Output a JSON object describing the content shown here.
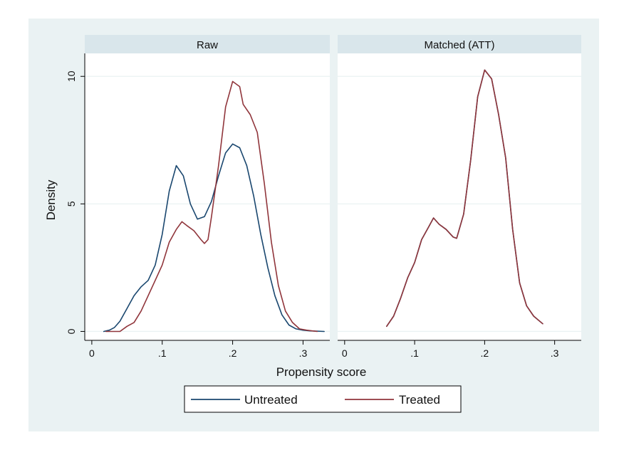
{
  "chart_data": {
    "type": "line",
    "ylabel": "Density",
    "xlabel": "Propensity score",
    "legend_position": "bottom",
    "grid": true,
    "y_ticks": [
      {
        "value": 0,
        "label": "0"
      },
      {
        "value": 5,
        "label": "5"
      },
      {
        "value": 10,
        "label": "10"
      }
    ],
    "x_ticks": [
      {
        "value": 0,
        "label": "0"
      },
      {
        "value": 0.1,
        "label": ".1"
      },
      {
        "value": 0.2,
        "label": ".2"
      },
      {
        "value": 0.3,
        "label": ".3"
      }
    ],
    "ylim": [
      -0.35,
      10.9
    ],
    "xlim": [
      -0.01,
      0.338
    ],
    "legend": [
      {
        "key": "untreated",
        "label": "Untreated",
        "color": "#1a476f"
      },
      {
        "key": "treated",
        "label": "Treated",
        "color": "#90353b"
      }
    ],
    "panels": [
      {
        "title": "Raw",
        "series": [
          {
            "key": "untreated",
            "name": "Untreated",
            "color": "#1a476f",
            "points": [
              [
                0.017,
                0.0
              ],
              [
                0.025,
                0.05
              ],
              [
                0.032,
                0.15
              ],
              [
                0.04,
                0.4
              ],
              [
                0.05,
                0.9
              ],
              [
                0.06,
                1.4
              ],
              [
                0.07,
                1.75
              ],
              [
                0.08,
                2.0
              ],
              [
                0.09,
                2.6
              ],
              [
                0.1,
                3.8
              ],
              [
                0.11,
                5.5
              ],
              [
                0.12,
                6.5
              ],
              [
                0.13,
                6.1
              ],
              [
                0.14,
                5.0
              ],
              [
                0.15,
                4.4
              ],
              [
                0.16,
                4.5
              ],
              [
                0.17,
                5.1
              ],
              [
                0.18,
                6.1
              ],
              [
                0.19,
                7.0
              ],
              [
                0.2,
                7.35
              ],
              [
                0.21,
                7.2
              ],
              [
                0.22,
                6.5
              ],
              [
                0.23,
                5.3
              ],
              [
                0.24,
                3.8
              ],
              [
                0.25,
                2.5
              ],
              [
                0.26,
                1.4
              ],
              [
                0.27,
                0.65
              ],
              [
                0.28,
                0.25
              ],
              [
                0.29,
                0.1
              ],
              [
                0.3,
                0.05
              ],
              [
                0.31,
                0.02
              ],
              [
                0.33,
                0.0
              ]
            ]
          },
          {
            "key": "treated",
            "name": "Treated",
            "color": "#90353b",
            "points": [
              [
                0.02,
                0.0
              ],
              [
                0.03,
                0.0
              ],
              [
                0.04,
                0.0
              ],
              [
                0.05,
                0.2
              ],
              [
                0.06,
                0.35
              ],
              [
                0.07,
                0.8
              ],
              [
                0.08,
                1.4
              ],
              [
                0.09,
                2.0
              ],
              [
                0.1,
                2.6
              ],
              [
                0.11,
                3.5
              ],
              [
                0.12,
                4.0
              ],
              [
                0.128,
                4.3
              ],
              [
                0.135,
                4.15
              ],
              [
                0.145,
                3.95
              ],
              [
                0.155,
                3.6
              ],
              [
                0.16,
                3.45
              ],
              [
                0.165,
                3.6
              ],
              [
                0.17,
                4.5
              ],
              [
                0.18,
                6.5
              ],
              [
                0.19,
                8.8
              ],
              [
                0.2,
                9.8
              ],
              [
                0.21,
                9.6
              ],
              [
                0.215,
                8.9
              ],
              [
                0.225,
                8.5
              ],
              [
                0.235,
                7.8
              ],
              [
                0.245,
                5.8
              ],
              [
                0.255,
                3.5
              ],
              [
                0.265,
                1.8
              ],
              [
                0.275,
                0.8
              ],
              [
                0.285,
                0.35
              ],
              [
                0.295,
                0.1
              ],
              [
                0.305,
                0.05
              ],
              [
                0.32,
                0.0
              ]
            ]
          }
        ]
      },
      {
        "title": "Matched (ATT)",
        "series": [
          {
            "key": "untreated",
            "name": "Untreated",
            "color": "#1a476f",
            "points": [
              [
                0.06,
                0.2
              ],
              [
                0.07,
                0.6
              ],
              [
                0.08,
                1.3
              ],
              [
                0.09,
                2.1
              ],
              [
                0.1,
                2.7
              ],
              [
                0.11,
                3.6
              ],
              [
                0.12,
                4.1
              ],
              [
                0.127,
                4.45
              ],
              [
                0.135,
                4.2
              ],
              [
                0.145,
                4.0
              ],
              [
                0.155,
                3.7
              ],
              [
                0.16,
                3.65
              ],
              [
                0.17,
                4.6
              ],
              [
                0.18,
                6.7
              ],
              [
                0.19,
                9.2
              ],
              [
                0.2,
                10.25
              ],
              [
                0.21,
                9.9
              ],
              [
                0.22,
                8.5
              ],
              [
                0.23,
                6.8
              ],
              [
                0.24,
                4.0
              ],
              [
                0.25,
                1.9
              ],
              [
                0.26,
                1.0
              ],
              [
                0.27,
                0.6
              ],
              [
                0.283,
                0.3
              ]
            ]
          },
          {
            "key": "treated",
            "name": "Treated",
            "color": "#90353b",
            "points": [
              [
                0.06,
                0.2
              ],
              [
                0.07,
                0.6
              ],
              [
                0.08,
                1.3
              ],
              [
                0.09,
                2.1
              ],
              [
                0.1,
                2.7
              ],
              [
                0.11,
                3.6
              ],
              [
                0.12,
                4.1
              ],
              [
                0.127,
                4.45
              ],
              [
                0.135,
                4.2
              ],
              [
                0.145,
                4.0
              ],
              [
                0.155,
                3.7
              ],
              [
                0.16,
                3.65
              ],
              [
                0.17,
                4.6
              ],
              [
                0.18,
                6.7
              ],
              [
                0.19,
                9.2
              ],
              [
                0.2,
                10.25
              ],
              [
                0.21,
                9.9
              ],
              [
                0.22,
                8.5
              ],
              [
                0.23,
                6.8
              ],
              [
                0.24,
                4.0
              ],
              [
                0.25,
                1.9
              ],
              [
                0.26,
                1.0
              ],
              [
                0.27,
                0.6
              ],
              [
                0.283,
                0.3
              ]
            ]
          }
        ]
      }
    ]
  }
}
